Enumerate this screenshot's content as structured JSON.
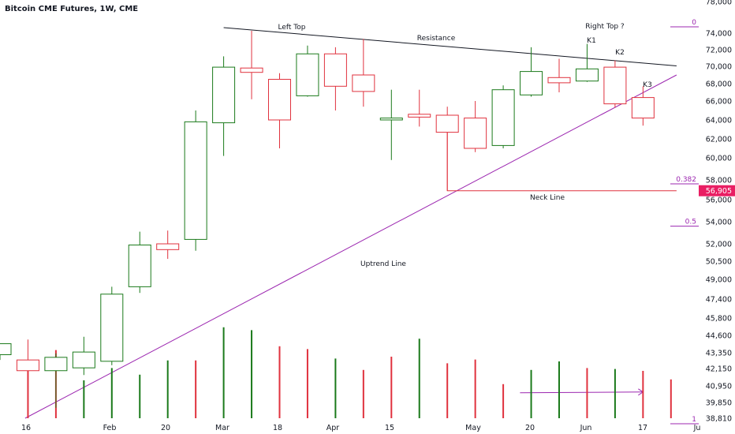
{
  "chart_data": {
    "type": "candlestick",
    "title": "Bitcoin CME Futures, 1W, CME",
    "x_ticks": [
      "16",
      "Feb",
      "20",
      "Mar",
      "18",
      "Apr",
      "15",
      "May",
      "20",
      "Jun",
      "17",
      "Ju"
    ],
    "y_ticks": [
      "78,000",
      "74,000",
      "72,000",
      "70,000",
      "68,000",
      "66,000",
      "64,000",
      "62,000",
      "60,000",
      "58,000",
      "56,000",
      "54,000",
      "52,000",
      "50,500",
      "49,000",
      "47,400",
      "45,800",
      "44,600",
      "43,350",
      "42,150",
      "40,950",
      "39,850",
      "38,810"
    ],
    "candles": [
      {
        "o": 43200,
        "h": 44000,
        "l": 42800,
        "c": 44000
      },
      {
        "o": 42800,
        "h": 44300,
        "l": 38810,
        "c": 42000
      },
      {
        "o": 42000,
        "h": 43300,
        "l": 39500,
        "c": 43000
      },
      {
        "o": 42200,
        "h": 44500,
        "l": 41700,
        "c": 43400
      },
      {
        "o": 42700,
        "h": 48400,
        "l": 42400,
        "c": 47800
      },
      {
        "o": 48400,
        "h": 53100,
        "l": 47900,
        "c": 51900
      },
      {
        "o": 52000,
        "h": 53200,
        "l": 50700,
        "c": 51500
      },
      {
        "o": 52400,
        "h": 65000,
        "l": 51400,
        "c": 63800
      },
      {
        "o": 63700,
        "h": 71200,
        "l": 60200,
        "c": 69900
      },
      {
        "o": 69800,
        "h": 74300,
        "l": 66200,
        "c": 69300
      },
      {
        "o": 68500,
        "h": 69200,
        "l": 61000,
        "c": 64000
      },
      {
        "o": 66600,
        "h": 72500,
        "l": 66500,
        "c": 71500
      },
      {
        "o": 71500,
        "h": 72300,
        "l": 65000,
        "c": 67700
      },
      {
        "o": 69000,
        "h": 73300,
        "l": 65400,
        "c": 67100
      },
      {
        "o": 64000,
        "h": 67300,
        "l": 59800,
        "c": 64200
      },
      {
        "o": 64600,
        "h": 67300,
        "l": 63300,
        "c": 64300
      },
      {
        "o": 64500,
        "h": 65400,
        "l": 56905,
        "c": 62700
      },
      {
        "o": 64200,
        "h": 66000,
        "l": 60600,
        "c": 61000
      },
      {
        "o": 61300,
        "h": 67800,
        "l": 61000,
        "c": 67300
      },
      {
        "o": 66700,
        "h": 72300,
        "l": 66500,
        "c": 69400
      },
      {
        "o": 68700,
        "h": 70900,
        "l": 67000,
        "c": 68100
      },
      {
        "o": 68300,
        "h": 72700,
        "l": 68200,
        "c": 69700
      },
      {
        "o": 69900,
        "h": 70700,
        "l": 65300,
        "c": 65700
      },
      {
        "o": 66400,
        "h": 67700,
        "l": 63400,
        "c": 64200
      }
    ],
    "volume": [
      {
        "dir": "down",
        "v": 0.53
      },
      {
        "dir": "down",
        "v": 0.72
      },
      {
        "dir": "up",
        "v": 0.4
      },
      {
        "dir": "up",
        "v": 0.53
      },
      {
        "dir": "up",
        "v": 0.46
      },
      {
        "dir": "up",
        "v": 0.61
      },
      {
        "dir": "down",
        "v": 0.61
      },
      {
        "dir": "up",
        "v": 0.96
      },
      {
        "dir": "up",
        "v": 0.93
      },
      {
        "dir": "down",
        "v": 0.76
      },
      {
        "dir": "down",
        "v": 0.73
      },
      {
        "dir": "up",
        "v": 0.63
      },
      {
        "dir": "down",
        "v": 0.51
      },
      {
        "dir": "down",
        "v": 0.65
      },
      {
        "dir": "up",
        "v": 0.84
      },
      {
        "dir": "down",
        "v": 0.58
      },
      {
        "dir": "down",
        "v": 0.62
      },
      {
        "dir": "down",
        "v": 0.36
      },
      {
        "dir": "up",
        "v": 0.51
      },
      {
        "dir": "up",
        "v": 0.6
      },
      {
        "dir": "down",
        "v": 0.53
      },
      {
        "dir": "up",
        "v": 0.52
      },
      {
        "dir": "down",
        "v": 0.5
      },
      {
        "dir": "down",
        "v": 0.41
      }
    ],
    "annotations": {
      "left_top": "Left Top",
      "right_top": "Right Top ?",
      "resistance": "Resistance",
      "k1": "K1",
      "k2": "K2",
      "k3": "K3",
      "neck_line": "Neck Line",
      "uptrend_line": "Uptrend Line"
    },
    "neck_price": 56905,
    "neck_label": "56,905",
    "fib_levels": [
      {
        "label": "0",
        "price": 74800
      },
      {
        "label": "0.382",
        "price": 57600
      },
      {
        "label": "0.5",
        "price": 53600
      },
      {
        "label": "1",
        "price": 38810
      }
    ],
    "trendlines": {
      "resistance": [
        {
          "i": 8,
          "p": 74700
        },
        {
          "i": 24.2,
          "p": 70050
        }
      ],
      "uptrend": [
        {
          "i": 0.9,
          "p": 38810
        },
        {
          "i": 24.2,
          "p": 69000
        }
      ],
      "neck": [
        {
          "i": 15.5,
          "p": 56905
        },
        {
          "i": 24.2,
          "p": 56905
        }
      ],
      "volume_arrow": [
        {
          "i": 18.6,
          "v": 0.96
        },
        {
          "i": 23.0,
          "v": 0.61
        }
      ]
    },
    "colors": {
      "up": "#1b7a1b",
      "down": "#e0323e",
      "fib": "#9c27b0",
      "neck_badge": "#e91e63",
      "line": "#131722"
    }
  }
}
